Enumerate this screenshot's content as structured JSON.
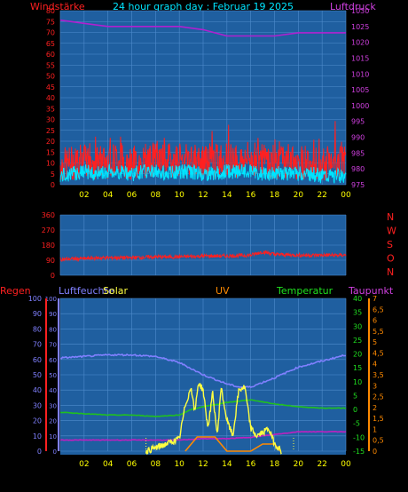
{
  "title": "24 hour graph day : Februar 19 2025",
  "colors": {
    "plot_bg": "#1f5fa0",
    "grid": "#4f8ccd",
    "wind": "#ff2020",
    "gust": "#00e5ff",
    "pressure": "#b020d0",
    "direction": "#ff2020",
    "humidity": "#8080ff",
    "temperature": "#20c020",
    "dewpoint": "#c020c0",
    "solar": "#ffff40",
    "uv": "#ff8a00",
    "tick": "#ffff00"
  },
  "x_ticks": [
    "02",
    "04",
    "06",
    "08",
    "10",
    "12",
    "14",
    "16",
    "18",
    "20",
    "22",
    "00"
  ],
  "chart_data": [
    {
      "type": "line",
      "name": "wind-pressure",
      "left_label": "Windstärke",
      "right_label": "Luftdruck",
      "left_ticks": [
        "0",
        "5",
        "10",
        "15",
        "20",
        "25",
        "30",
        "35",
        "40",
        "45",
        "50",
        "55",
        "60",
        "65",
        "70",
        "75",
        "80"
      ],
      "right_ticks": [
        "975",
        "980",
        "985",
        "990",
        "995",
        "1000",
        "1005",
        "1010",
        "1015",
        "1020",
        "1025",
        "1030"
      ],
      "left_range": [
        0,
        80
      ],
      "right_range": [
        975,
        1030
      ],
      "series": [
        {
          "key": "wind",
          "x": [
            0,
            1,
            2,
            3,
            4,
            5,
            6,
            7,
            8,
            9,
            10,
            11,
            12,
            13,
            14,
            15,
            16,
            17,
            18,
            19,
            20,
            21,
            22,
            23,
            24
          ],
          "values": [
            9,
            10,
            11,
            10,
            11,
            12,
            10,
            11,
            12,
            11,
            12,
            11,
            10,
            11,
            12,
            11,
            12,
            11,
            10,
            11,
            10,
            11,
            10,
            10,
            10
          ]
        },
        {
          "key": "gust",
          "x": [
            0,
            1,
            2,
            3,
            4,
            5,
            6,
            7,
            8,
            9,
            10,
            11,
            12,
            13,
            14,
            15,
            16,
            17,
            18,
            19,
            20,
            21,
            22,
            23,
            24
          ],
          "values": [
            4,
            5,
            6,
            5,
            6,
            6,
            5,
            6,
            6,
            5,
            6,
            6,
            5,
            5,
            6,
            6,
            6,
            5,
            5,
            5,
            5,
            5,
            4,
            4,
            4
          ]
        },
        {
          "key": "pressure",
          "x": [
            0,
            2,
            4,
            6,
            8,
            10,
            12,
            14,
            16,
            18,
            20,
            22,
            24
          ],
          "values": [
            1027,
            1026,
            1025,
            1025,
            1025,
            1025,
            1024,
            1022,
            1022,
            1022,
            1023,
            1023,
            1023
          ]
        }
      ]
    },
    {
      "type": "scatter",
      "name": "wind-direction",
      "left_ticks": [
        "0",
        "90",
        "180",
        "270",
        "360"
      ],
      "right_ticks": [
        "N",
        "W",
        "S",
        "O",
        "N"
      ],
      "left_range": [
        0,
        360
      ],
      "series": [
        {
          "key": "direction",
          "x": [
            0,
            2,
            4,
            6,
            8,
            10,
            12,
            14,
            16,
            17,
            18,
            20,
            22,
            24
          ],
          "values": [
            95,
            100,
            105,
            105,
            110,
            110,
            115,
            115,
            120,
            140,
            125,
            120,
            120,
            120
          ]
        }
      ]
    },
    {
      "type": "line",
      "name": "climate",
      "labels": {
        "rain": "Regen",
        "humidity": "Luftfeuchte",
        "solar": "Solar",
        "uv": "UV",
        "temperature": "Temperatur",
        "dewpoint": "Taupunkt"
      },
      "rain_ticks": [
        "0",
        "10",
        "20",
        "30",
        "40",
        "50",
        "60",
        "70",
        "80",
        "90",
        "100"
      ],
      "humidity_ticks": [
        "0",
        "10",
        "20",
        "30",
        "40",
        "50",
        "60",
        "70",
        "80",
        "90",
        "100"
      ],
      "temperature_ticks": [
        "-15",
        "-10",
        "-5",
        "0",
        "5",
        "10",
        "15",
        "20",
        "25",
        "30",
        "35",
        "40"
      ],
      "dewpoint_ticks": [
        "0",
        "0,5",
        "1",
        "1,5",
        "2",
        "2,5",
        "3",
        "3,5",
        "4",
        "4,5",
        "5",
        "5,5",
        "6",
        "6,5",
        "7"
      ],
      "temperature_range": [
        -15,
        40
      ],
      "humidity_range": [
        0,
        100
      ],
      "solar_range": [
        0,
        100
      ],
      "series": [
        {
          "key": "humidity",
          "x": [
            0,
            2,
            4,
            6,
            8,
            10,
            12,
            14,
            15,
            16,
            18,
            20,
            22,
            24
          ],
          "values": [
            61,
            62,
            63,
            63,
            62,
            58,
            50,
            44,
            42,
            42,
            48,
            55,
            59,
            63
          ]
        },
        {
          "key": "temperature",
          "x": [
            0,
            2,
            4,
            6,
            8,
            10,
            11,
            12,
            14,
            16,
            18,
            20,
            22,
            24
          ],
          "values": [
            -1,
            -1.5,
            -2,
            -2,
            -2.5,
            -2,
            0,
            1,
            2.5,
            3.5,
            2,
            1,
            0.5,
            0.5
          ]
        },
        {
          "key": "dewpoint",
          "x": [
            0,
            2,
            4,
            6,
            8,
            10,
            12,
            14,
            16,
            18,
            20,
            22,
            24
          ],
          "values": [
            -11,
            -11,
            -11,
            -11,
            -11,
            -11,
            -10.5,
            -10.5,
            -10,
            -9,
            -8,
            -8,
            -8
          ]
        },
        {
          "key": "solar",
          "x": [
            7.2,
            8,
            9,
            10,
            10.5,
            11,
            11.3,
            11.6,
            12,
            12.4,
            12.8,
            13.2,
            13.5,
            14,
            14.5,
            15,
            15.5,
            16,
            16.5,
            17,
            17.5,
            18,
            18.6
          ],
          "values": [
            0,
            2,
            5,
            8,
            30,
            42,
            25,
            45,
            40,
            15,
            38,
            10,
            42,
            20,
            10,
            40,
            42,
            15,
            10,
            12,
            15,
            5,
            0
          ]
        },
        {
          "key": "uv",
          "x": [
            10.5,
            11,
            11.5,
            12,
            13,
            13.5,
            14,
            16,
            17,
            18,
            18.5
          ],
          "values": [
            0,
            0.5,
            1,
            1,
            1,
            0.5,
            0,
            0,
            0.5,
            0.5,
            0
          ]
        }
      ]
    }
  ]
}
